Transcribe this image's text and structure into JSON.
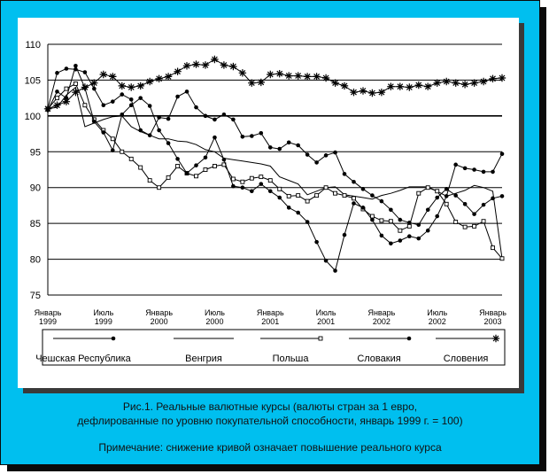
{
  "caption": {
    "line1": "Рис.1. Реальные валютные курсы (валюты стран за 1 евро,",
    "line2": "дефлированные по уровню покупательной способности, январь 1999 г. = 100)",
    "note": "Примечание: снижение кривой означает повышение реального курса"
  },
  "colors": {
    "frame": "#00bfef",
    "line": "#000000",
    "grid": "#000000",
    "text": "#000000"
  },
  "chart_data": {
    "type": "line",
    "title": "",
    "xlabel": "",
    "ylabel": "",
    "ylim": [
      75,
      110
    ],
    "yticks": [
      75,
      80,
      85,
      90,
      95,
      100,
      105,
      110
    ],
    "grid": "horizontal",
    "legend_position": "bottom",
    "x": [
      0,
      1,
      2,
      3,
      4,
      5,
      6,
      7,
      8,
      9,
      10,
      11,
      12,
      13,
      14,
      15,
      16,
      17,
      18,
      19,
      20,
      21,
      22,
      23,
      24,
      25,
      26,
      27,
      28,
      29,
      30,
      31,
      32,
      33,
      34,
      35,
      36,
      37,
      38,
      39,
      40,
      41,
      42,
      43,
      44,
      45,
      46,
      47,
      48,
      49
    ],
    "xtick_labels": [
      {
        "month": "Январь",
        "year": "1999",
        "index": 0
      },
      {
        "month": "Июль",
        "year": "1999",
        "index": 6
      },
      {
        "month": "Январь",
        "year": "2000",
        "index": 12
      },
      {
        "month": "Июль",
        "year": "2000",
        "index": 18
      },
      {
        "month": "Январь",
        "year": "2001",
        "index": 24
      },
      {
        "month": "Июль",
        "year": "2001",
        "index": 30
      },
      {
        "month": "Январь",
        "year": "2002",
        "index": 36
      },
      {
        "month": "Июль",
        "year": "2002",
        "index": 42
      },
      {
        "month": "Январь",
        "year": "2003",
        "index": 48
      }
    ],
    "series": [
      {
        "name": "Чешская Республика",
        "marker": "dot",
        "values": [
          101,
          106,
          106.6,
          106.5,
          106.1,
          103.8,
          101.5,
          102,
          103,
          102.3,
          98,
          97.3,
          99.8,
          99.6,
          102.7,
          103.4,
          101.2,
          100,
          99.5,
          100.2,
          99.5,
          97.1,
          97.2,
          97.6,
          95.6,
          95.4,
          96.3,
          95.9,
          94.6,
          93.5,
          94.5,
          94.9,
          91.9,
          90.8,
          89.8,
          88.9,
          88.1,
          86.9,
          85.5,
          85.1,
          84.8,
          86.9,
          88.6,
          89.8,
          88.9,
          87.7,
          86.3,
          87.6,
          88.5,
          88.8
        ]
      },
      {
        "name": "Венгрия",
        "marker": "none",
        "values": [
          101,
          101.2,
          102.9,
          104,
          98.5,
          99,
          99.5,
          99.9,
          100,
          98.5,
          97.8,
          97.3,
          96.8,
          96.8,
          96.5,
          96.4,
          96,
          95.3,
          95,
          94.1,
          93.9,
          93.7,
          93.5,
          93.3,
          93,
          91.5,
          91,
          90.5,
          89,
          89.5,
          90,
          90.1,
          89,
          88.8,
          88.6,
          88.4,
          88.9,
          89.2,
          89.6,
          90.1,
          90.1,
          90.1,
          89.5,
          88.8,
          89.2,
          89.6,
          90.3,
          90,
          89.5,
          80.1
        ]
      },
      {
        "name": "Польша",
        "marker": "open-square",
        "values": [
          101,
          102.5,
          103.8,
          104.5,
          101.5,
          99.5,
          98,
          96.8,
          95,
          94,
          92.8,
          91,
          90,
          91.4,
          93,
          92,
          91.6,
          92.5,
          93,
          93.2,
          91.2,
          90.8,
          91.3,
          91.5,
          91,
          89.8,
          88.8,
          88.9,
          88.1,
          88.9,
          90,
          89.2,
          88.9,
          88.5,
          87,
          86,
          85.4,
          85.3,
          84,
          84.6,
          89.2,
          90,
          89.5,
          87.7,
          85.2,
          84.5,
          84.6,
          85.3,
          81.6,
          80.1
        ]
      },
      {
        "name": "Словакия",
        "marker": "dot",
        "values": [
          100.8,
          103.4,
          102.5,
          107,
          103.9,
          99.2,
          97.7,
          95.2,
          100.2,
          101.5,
          102.5,
          101.4,
          98,
          96.2,
          94,
          92,
          93.1,
          94.2,
          97,
          93.9,
          90.2,
          90,
          89.5,
          90.5,
          89.5,
          88.6,
          87.2,
          86.5,
          85.2,
          82.4,
          79.8,
          78.4,
          83.4,
          87.8,
          87.2,
          85.5,
          83.3,
          82.2,
          82.6,
          83.2,
          82.9,
          84,
          86,
          88.8,
          93.2,
          92.7,
          92.5,
          92.2,
          92.2,
          94.7
        ]
      },
      {
        "name": "Словения",
        "marker": "star",
        "values": [
          101,
          101.5,
          102,
          103.3,
          104,
          104.6,
          105.8,
          105.5,
          104.2,
          104,
          104.2,
          104.8,
          105.2,
          105.5,
          106.2,
          107,
          107.2,
          107.1,
          107.9,
          107.1,
          106.9,
          106,
          104.6,
          104.7,
          105.8,
          105.9,
          105.6,
          105.6,
          105.5,
          105.5,
          105.3,
          104.6,
          104.2,
          103.3,
          103.5,
          103.2,
          103.3,
          104.1,
          104.1,
          104,
          104.3,
          104.1,
          104.6,
          104.8,
          104.6,
          104.4,
          104.6,
          104.8,
          105.2,
          105.3
        ]
      }
    ]
  }
}
